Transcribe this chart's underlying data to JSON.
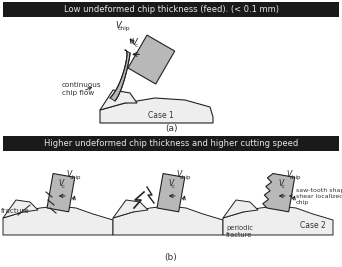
{
  "title_a": "Low undeformed chip thickness (feed). (< 0.1 mm)",
  "title_b": "Higher undeformed chip thickness and higher cutting speed",
  "label_a": "(a)",
  "label_b": "(b)",
  "case1": "Case 1",
  "case2": "Case 2",
  "continuous_chip_flow": "continuous\nchip flow",
  "fracture": "fracture",
  "saw_tooth": "saw-tooth shape\nshear localized\nchip",
  "periodic_fracture": "periodic\nfracture",
  "bg_color": "#ffffff",
  "banner_color": "#1a1a1a",
  "banner_text_color": "#e8e8e8",
  "chip_fill": "#b8b8b8",
  "chip_edge": "#222222",
  "workpiece_fill": "#eeeeee",
  "workpiece_edge": "#222222",
  "arrow_color": "#222222"
}
